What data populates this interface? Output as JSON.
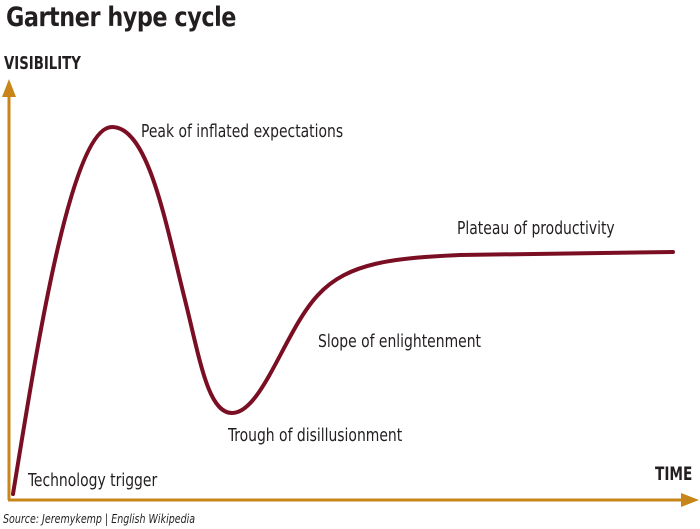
{
  "title": "Gartner hype cycle",
  "axes": {
    "y_label": "VISIBILITY",
    "x_label": "TIME"
  },
  "phases": [
    {
      "label": "Technology trigger"
    },
    {
      "label": "Peak of inflated expectations"
    },
    {
      "label": "Trough of disillusionment"
    },
    {
      "label": "Slope of enlightenment"
    },
    {
      "label": "Plateau of productivity"
    }
  ],
  "source": "Source: Jeremykemp | English Wikipedia",
  "colors": {
    "axis": "#c8861a",
    "curve": "#7a0f24",
    "text": "#231f20"
  }
}
